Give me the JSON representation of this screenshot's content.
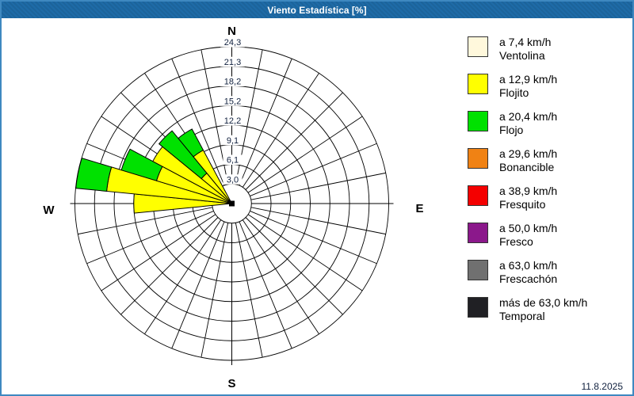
{
  "window": {
    "title": "Viento Estadística [%]",
    "date": "11.8.2025",
    "title_bar_color": "#1E6BA7",
    "frame_color": "#3E88C0"
  },
  "chart_data": {
    "type": "wind-rose",
    "title": "Viento Estadística [%]",
    "units": "%",
    "num_sectors": 32,
    "sector_width_deg": 11.25,
    "max_value": 24.33,
    "ring_values": [
      3.0,
      6.1,
      9.1,
      12.2,
      15.2,
      18.2,
      21.3,
      24.3
    ],
    "ring_labels": [
      "3,0",
      "6,1",
      "9,1",
      "12,2",
      "15,2",
      "18,2",
      "21,3",
      "24,3"
    ],
    "grid_color": "#000000",
    "compass": {
      "north": "N",
      "east": "E",
      "south": "S",
      "west": "W"
    },
    "petals": [
      {
        "direction_deg": 270.0,
        "segments": [
          {
            "class": "Flojito",
            "color": "#FFFF00",
            "to_value": 15.2
          }
        ]
      },
      {
        "direction_deg": 281.25,
        "segments": [
          {
            "class": "Flojito",
            "color": "#FFFF00",
            "to_value": 19.5
          },
          {
            "class": "Flojo",
            "color": "#00E100",
            "to_value": 24.3
          }
        ]
      },
      {
        "direction_deg": 292.5,
        "segments": [
          {
            "class": "Flojito",
            "color": "#FFFF00",
            "to_value": 12.2
          },
          {
            "class": "Flojo",
            "color": "#00E100",
            "to_value": 17.9
          }
        ]
      },
      {
        "direction_deg": 303.75,
        "segments": [
          {
            "class": "Flojito",
            "color": "#FFFF00",
            "to_value": 13.9
          }
        ]
      },
      {
        "direction_deg": 315.0,
        "segments": [
          {
            "class": "Flojito",
            "color": "#FFFF00",
            "to_value": 6.1
          },
          {
            "class": "Flojo",
            "color": "#00E100",
            "to_value": 14.6
          }
        ]
      },
      {
        "direction_deg": 326.25,
        "segments": [
          {
            "class": "Flojito",
            "color": "#FFFF00",
            "to_value": 9.4
          },
          {
            "class": "Flojo",
            "color": "#00E100",
            "to_value": 13.1
          }
        ]
      }
    ]
  },
  "legend": {
    "items": [
      {
        "color": "#FFF8DC",
        "speed": "a 7,4 km/h",
        "name": "Ventolina"
      },
      {
        "color": "#FFFF00",
        "speed": "a 12,9 km/h",
        "name": "Flojito"
      },
      {
        "color": "#00E100",
        "speed": "a 20,4 km/h",
        "name": "Flojo"
      },
      {
        "color": "#F08214",
        "speed": "a 29,6 km/h",
        "name": "Bonancible"
      },
      {
        "color": "#F40000",
        "speed": "a 38,9 km/h",
        "name": "Fresquito"
      },
      {
        "color": "#8B188B",
        "speed": "a 50,0 km/h",
        "name": "Fresco"
      },
      {
        "color": "#707070",
        "speed": "a 63,0 km/h",
        "name": "Frescachón"
      },
      {
        "color": "#202024",
        "speed": "más de 63,0 km/h",
        "name": "Temporal"
      }
    ]
  }
}
